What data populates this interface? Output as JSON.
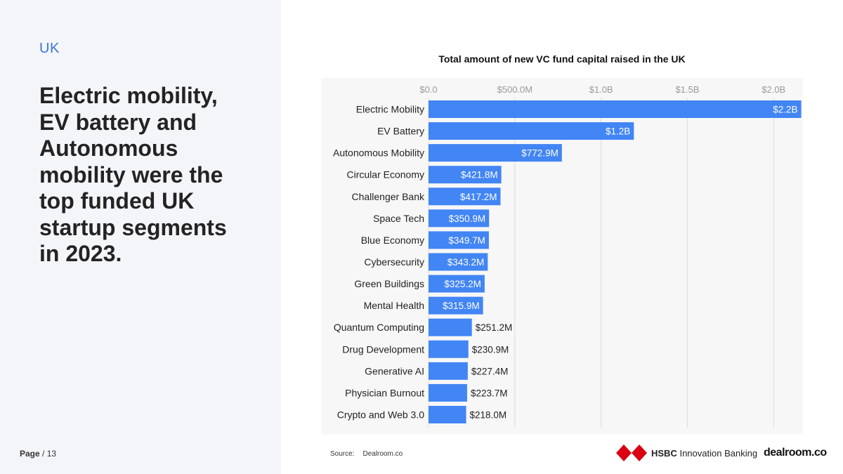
{
  "left": {
    "kicker": "UK",
    "headline": "Electric mobility, EV battery and Autonomous mobility were the top funded UK startup segments in 2023."
  },
  "footer": {
    "page_label": "Page",
    "page_sep": " / 13",
    "source_label": "Source:",
    "source_value": "Dealroom.co",
    "hsbc_brand": "HSBC",
    "hsbc_sub": "Innovation Banking",
    "dealroom_logo": "dealroom.co"
  },
  "colors": {
    "bar": "#4285f4",
    "accent": "#3a74d9",
    "hsbc_red": "#db0011"
  },
  "chart_data": {
    "type": "bar",
    "orientation": "horizontal",
    "title": "Total amount of new VC fund capital raised in the UK",
    "xlabel": "",
    "ylabel": "",
    "xlim": [
      0,
      2170000000
    ],
    "ticks": [
      0,
      500000000,
      1000000000,
      1500000000,
      2000000000
    ],
    "tick_labels": [
      "$0.0",
      "$500.0M",
      "$1.0B",
      "$1.5B",
      "$2.0B"
    ],
    "grid": true,
    "categories": [
      "Electric Mobility",
      "EV Battery",
      "Autonomous Mobility",
      "Circular Economy",
      "Challenger Bank",
      "Space Tech",
      "Blue Economy",
      "Cybersecurity",
      "Green Buildings",
      "Mental Health",
      "Quantum Computing",
      "Drug Development",
      "Generative AI",
      "Physician Burnout",
      "Crypto and Web 3.0"
    ],
    "values": [
      2160000000,
      1190000000,
      772900000,
      421800000,
      417200000,
      350900000,
      349700000,
      343200000,
      325200000,
      315900000,
      251200000,
      230900000,
      227400000,
      223700000,
      218000000
    ],
    "labels": [
      "$2.2B",
      "$1.2B",
      "$772.9M",
      "$421.8M",
      "$417.2M",
      "$350.9M",
      "$349.7M",
      "$343.2M",
      "$325.2M",
      "$315.9M",
      "$251.2M",
      "$230.9M",
      "$227.4M",
      "$223.7M",
      "$218.0M"
    ]
  }
}
